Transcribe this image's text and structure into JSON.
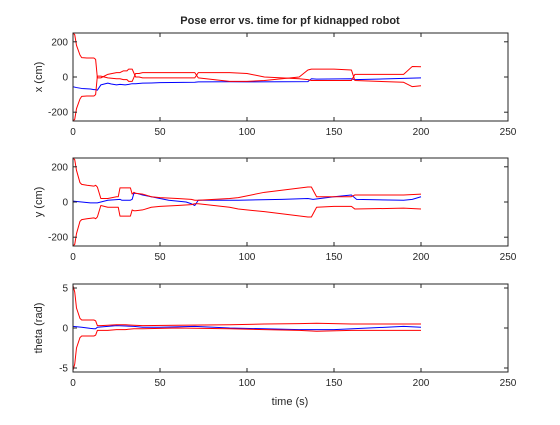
{
  "colors": {
    "estimate": "#0000ff",
    "bound": "#ff0000",
    "axes": "#262626",
    "background": "#ffffff"
  },
  "chart_data": [
    {
      "type": "line",
      "title": "Pose error vs. time for pf kidnapped robot",
      "xlabel": "",
      "ylabel": "x (cm)",
      "xlim": [
        0,
        250
      ],
      "ylim": [
        -250,
        250
      ],
      "xticks": [
        0,
        50,
        100,
        150,
        200,
        250
      ],
      "yticks": [
        -200,
        0,
        200
      ],
      "grid": false,
      "series": [
        {
          "role": "estimate",
          "x": [
            0,
            2,
            5,
            10,
            12,
            13,
            14,
            16,
            18,
            20,
            22,
            25,
            27,
            30,
            32,
            34,
            36,
            40,
            45,
            50,
            70,
            72,
            90,
            100,
            120,
            135,
            137,
            140,
            160,
            162,
            190,
            200
          ],
          "y": [
            -55,
            -60,
            -65,
            -68,
            -72,
            -72,
            -75,
            -45,
            -40,
            -35,
            -40,
            -45,
            -42,
            -45,
            -42,
            -38,
            -38,
            -35,
            -34,
            -32,
            -30,
            -28,
            -27,
            -28,
            -27,
            -26,
            -10,
            -12,
            -10,
            -15,
            -8,
            -5
          ]
        },
        {
          "role": "upper-bound",
          "x": [
            0,
            1,
            2,
            4,
            5,
            8,
            12,
            13,
            14,
            16,
            20,
            25,
            27,
            29,
            31,
            32,
            34,
            36,
            38,
            40,
            45,
            60,
            68,
            70,
            72,
            90,
            100,
            110,
            130,
            135,
            137,
            150,
            160,
            162,
            190,
            195,
            200
          ],
          "y": [
            250,
            240,
            180,
            125,
            110,
            108,
            108,
            100,
            -5,
            -5,
            15,
            25,
            25,
            35,
            35,
            45,
            45,
            0,
            0,
            -5,
            -5,
            -5,
            -5,
            -5,
            25,
            25,
            20,
            0,
            -10,
            -15,
            -20,
            -20,
            -20,
            15,
            15,
            60,
            58
          ]
        },
        {
          "role": "lower-bound",
          "x": [
            0,
            1,
            2,
            4,
            5,
            8,
            12,
            13,
            14,
            16,
            20,
            25,
            27,
            29,
            31,
            32,
            34,
            36,
            38,
            40,
            45,
            60,
            68,
            70,
            72,
            90,
            100,
            110,
            130,
            135,
            137,
            150,
            160,
            162,
            190,
            195,
            200
          ],
          "y": [
            -250,
            -240,
            -180,
            -125,
            -110,
            -108,
            -108,
            -100,
            5,
            5,
            -5,
            -10,
            -10,
            -15,
            -15,
            -25,
            -25,
            20,
            20,
            25,
            25,
            25,
            25,
            25,
            -5,
            -25,
            -25,
            -20,
            0,
            40,
            45,
            45,
            40,
            -20,
            -30,
            -55,
            -50
          ]
        }
      ]
    },
    {
      "type": "line",
      "title": "",
      "xlabel": "",
      "ylabel": "y (cm)",
      "xlim": [
        0,
        250
      ],
      "ylim": [
        -250,
        250
      ],
      "xticks": [
        0,
        50,
        100,
        150,
        200,
        250
      ],
      "yticks": [
        -200,
        0,
        200
      ],
      "grid": false,
      "series": [
        {
          "role": "estimate",
          "x": [
            0,
            5,
            10,
            13,
            14,
            20,
            27,
            28,
            33,
            34,
            35,
            37,
            40,
            45,
            55,
            65,
            68,
            70,
            72,
            90,
            95,
            120,
            135,
            138,
            150,
            160,
            163,
            190,
            195,
            200
          ],
          "y": [
            5,
            0,
            -5,
            -5,
            -5,
            10,
            15,
            10,
            10,
            15,
            50,
            48,
            40,
            30,
            10,
            0,
            -10,
            -20,
            10,
            10,
            10,
            15,
            20,
            15,
            30,
            40,
            15,
            10,
            15,
            30
          ]
        },
        {
          "role": "upper-bound",
          "x": [
            0,
            1,
            2,
            4,
            5,
            8,
            12,
            13,
            14,
            16,
            20,
            25,
            26,
            27,
            30,
            33,
            34,
            35,
            36,
            40,
            45,
            50,
            60,
            68,
            70,
            72,
            90,
            95,
            110,
            135,
            137,
            140,
            150,
            160,
            162,
            190,
            200
          ],
          "y": [
            250,
            240,
            180,
            110,
            100,
            95,
            90,
            95,
            85,
            20,
            20,
            30,
            30,
            80,
            80,
            80,
            45,
            55,
            50,
            45,
            30,
            25,
            20,
            15,
            10,
            10,
            20,
            25,
            55,
            85,
            85,
            30,
            30,
            30,
            40,
            40,
            45
          ]
        },
        {
          "role": "lower-bound",
          "x": [
            0,
            1,
            2,
            4,
            5,
            8,
            12,
            13,
            14,
            16,
            20,
            25,
            26,
            27,
            30,
            33,
            34,
            35,
            36,
            40,
            45,
            50,
            60,
            68,
            70,
            72,
            90,
            95,
            110,
            135,
            137,
            140,
            150,
            160,
            162,
            190,
            200
          ],
          "y": [
            -250,
            -240,
            -180,
            -110,
            -100,
            -95,
            -90,
            -95,
            -85,
            -20,
            -30,
            -30,
            -30,
            -80,
            -80,
            -80,
            -45,
            -50,
            -50,
            -45,
            -30,
            -25,
            -20,
            -15,
            -10,
            -10,
            -30,
            -40,
            -55,
            -85,
            -85,
            -30,
            -25,
            -25,
            -40,
            -35,
            -40
          ]
        }
      ]
    },
    {
      "type": "line",
      "title": "",
      "xlabel": "time (s)",
      "ylabel": "theta (rad)",
      "xlim": [
        0,
        250
      ],
      "ylim": [
        -5.5,
        5.5
      ],
      "xticks": [
        0,
        50,
        100,
        150,
        200,
        250
      ],
      "yticks": [
        -5,
        0,
        5
      ],
      "grid": false,
      "series": [
        {
          "role": "estimate",
          "x": [
            0,
            5,
            10,
            12,
            13,
            14,
            20,
            25,
            30,
            35,
            40,
            50,
            70,
            90,
            110,
            130,
            150,
            170,
            190,
            200
          ],
          "y": [
            0.2,
            0.1,
            -0.05,
            -0.1,
            -0.1,
            0.1,
            0.2,
            0.3,
            0.25,
            0.2,
            0.1,
            0.1,
            0.2,
            0.0,
            -0.1,
            -0.2,
            -0.2,
            0.0,
            0.2,
            0.1
          ]
        },
        {
          "role": "upper-bound",
          "x": [
            0,
            1,
            2,
            4,
            5,
            8,
            12,
            13,
            14,
            16,
            20,
            25,
            30,
            35,
            40,
            60,
            90,
            110,
            130,
            140,
            160,
            200
          ],
          "y": [
            5.3,
            4.5,
            2.5,
            1.2,
            1.0,
            1.0,
            1.0,
            0.9,
            0.3,
            0.3,
            0.35,
            0.4,
            0.4,
            0.35,
            0.3,
            0.35,
            0.4,
            0.5,
            0.55,
            0.6,
            0.5,
            0.5
          ]
        },
        {
          "role": "lower-bound",
          "x": [
            0,
            1,
            2,
            4,
            5,
            8,
            12,
            13,
            14,
            16,
            20,
            25,
            30,
            35,
            40,
            60,
            90,
            110,
            130,
            140,
            160,
            200
          ],
          "y": [
            -5.3,
            -4.5,
            -2.5,
            -1.2,
            -1.0,
            -1.0,
            -1.0,
            -0.9,
            -0.3,
            -0.3,
            -0.3,
            -0.2,
            -0.2,
            -0.1,
            -0.1,
            0.0,
            -0.1,
            -0.2,
            -0.3,
            -0.4,
            -0.3,
            -0.3
          ]
        }
      ]
    }
  ]
}
